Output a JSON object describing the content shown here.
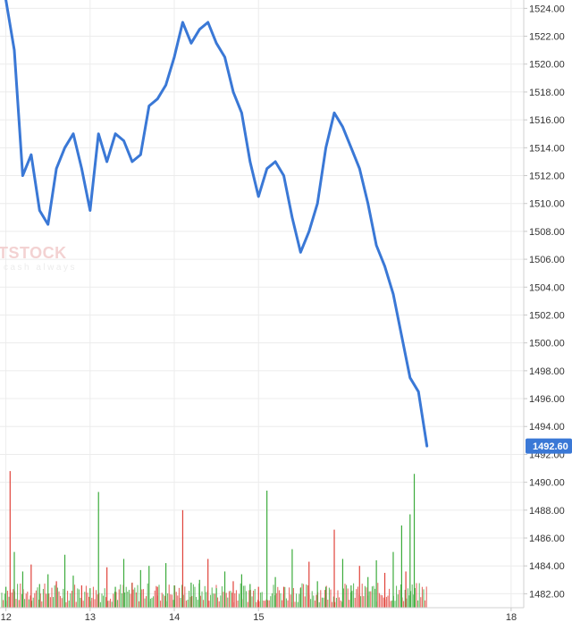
{
  "watermark": {
    "main": "TSTOCK",
    "sub": "cash always"
  },
  "chart_data": {
    "type": "line",
    "grid": true,
    "x_ticks": [
      "12",
      "13",
      "14",
      "15",
      "18"
    ],
    "y_ticks": [
      "1524.00",
      "1522.00",
      "1520.00",
      "1518.00",
      "1516.00",
      "1514.00",
      "1512.00",
      "1510.00",
      "1508.00",
      "1506.00",
      "1504.00",
      "1502.00",
      "1500.00",
      "1498.00",
      "1496.00",
      "1494.00",
      "1492.00",
      "1490.00",
      "1488.00",
      "1486.00",
      "1484.00",
      "1482.00"
    ],
    "ylim": [
      1481.0,
      1524.6
    ],
    "xlim": [
      11.93,
      18.15
    ],
    "last_value_label": "1492.60",
    "colors": {
      "price_line": "#3a78d6",
      "last_badge": "#3a78d6",
      "volume_up": "#3cab3c",
      "volume_down": "#e0423a",
      "grid": "#ececec"
    },
    "series": [
      {
        "type": "line",
        "x": [
          12.0,
          12.1,
          12.2,
          12.3,
          12.4,
          12.5,
          12.6,
          12.7,
          12.8,
          12.9,
          13.0,
          13.1,
          13.2,
          13.3,
          13.4,
          13.5,
          13.6,
          13.7,
          13.8,
          13.9,
          14.0,
          14.1,
          14.2,
          14.3,
          14.4,
          14.5,
          14.6,
          14.7,
          14.8,
          14.9,
          15.0,
          15.1,
          15.2,
          15.3,
          15.4,
          15.5,
          15.6,
          15.7,
          15.8,
          15.9,
          16.0,
          16.1,
          16.2,
          16.3,
          16.4,
          16.5,
          16.6,
          16.7,
          16.8,
          16.9,
          17.0
        ],
        "y": [
          1524.6,
          1521.0,
          1512.0,
          1513.5,
          1509.5,
          1508.5,
          1512.5,
          1514.0,
          1515.0,
          1512.5,
          1509.5,
          1515.0,
          1513.0,
          1515.0,
          1514.5,
          1513.0,
          1513.5,
          1517.0,
          1517.5,
          1518.5,
          1520.5,
          1523.0,
          1521.5,
          1522.5,
          1523.0,
          1521.5,
          1520.5,
          1518.0,
          1516.5,
          1513.0,
          1510.5,
          1512.5,
          1513.0,
          1512.0,
          1509.0,
          1506.5,
          1508.0,
          1510.0,
          1514.0,
          1516.5,
          1515.5,
          1514.0,
          1512.5,
          1510.0,
          1507.0,
          1505.5,
          1503.5,
          1500.5,
          1497.5,
          1496.5,
          1492.6
        ]
      },
      {
        "type": "bar",
        "name": "volume",
        "x": [
          12.0,
          12.05,
          12.1,
          12.2,
          12.3,
          12.4,
          12.5,
          12.6,
          12.7,
          12.8,
          12.9,
          13.0,
          13.1,
          13.2,
          13.3,
          13.4,
          13.5,
          13.6,
          13.7,
          13.8,
          13.9,
          14.0,
          14.1,
          14.2,
          14.3,
          14.4,
          14.5,
          14.6,
          14.7,
          14.8,
          14.9,
          15.0,
          15.1,
          15.2,
          15.3,
          15.4,
          15.5,
          15.6,
          15.7,
          15.8,
          15.9,
          16.0,
          16.1,
          16.2,
          16.3,
          16.4,
          16.5,
          16.6,
          16.7,
          16.75,
          16.8,
          16.85
        ],
        "y": [
          1482.5,
          1490.8,
          1485.0,
          1483.6,
          1484.1,
          1482.7,
          1483.4,
          1482.9,
          1484.8,
          1483.3,
          1482.6,
          1482.4,
          1489.3,
          1483.9,
          1482.5,
          1484.5,
          1482.8,
          1483.7,
          1484.0,
          1482.5,
          1484.2,
          1482.6,
          1488.0,
          1482.8,
          1483.0,
          1484.5,
          1482.4,
          1483.6,
          1482.9,
          1483.4,
          1482.7,
          1482.5,
          1489.4,
          1483.2,
          1482.5,
          1485.2,
          1482.4,
          1484.3,
          1482.9,
          1482.5,
          1486.6,
          1484.5,
          1482.6,
          1484.0,
          1483.2,
          1484.4,
          1483.5,
          1485.0,
          1486.9,
          1483.6,
          1487.7,
          1490.6
        ]
      }
    ]
  }
}
